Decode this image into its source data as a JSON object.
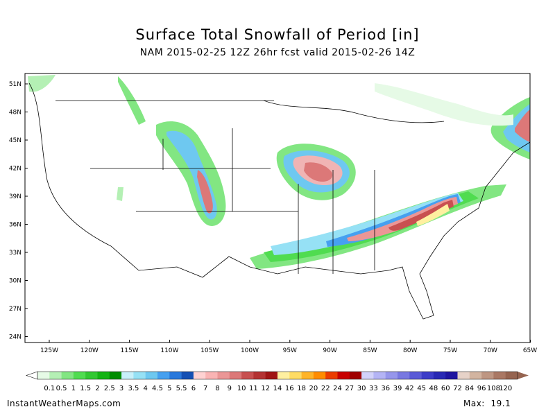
{
  "title": "Surface Total Snowfall of Period [in]",
  "subtitle": "NAM 2015-02-25 12Z 26hr fcst valid 2015-02-26 14Z",
  "credit": "InstantWeatherMaps.com",
  "max_label": "Max:",
  "max_value": "19.1",
  "lat_labels": [
    "51N",
    "48N",
    "45N",
    "42N",
    "39N",
    "36N",
    "33N",
    "30N",
    "27N",
    "24N"
  ],
  "lon_labels": [
    "125W",
    "120W",
    "115W",
    "110W",
    "105W",
    "100W",
    "95W",
    "90W",
    "85W",
    "80W",
    "75W",
    "70W",
    "65W"
  ],
  "legend": {
    "labels": [
      "0.1",
      "0.5",
      "1",
      "1.5",
      "2",
      "2.5",
      "3",
      "3.5",
      "4",
      "4.5",
      "5",
      "5.5",
      "6",
      "7",
      "8",
      "9",
      "10",
      "11",
      "12",
      "14",
      "16",
      "18",
      "20",
      "22",
      "24",
      "27",
      "30",
      "33",
      "36",
      "39",
      "42",
      "45",
      "48",
      "60",
      "72",
      "84",
      "96",
      "108",
      "120"
    ],
    "colors": [
      "#e6fae6",
      "#b4f0b4",
      "#82e682",
      "#50dc50",
      "#32c832",
      "#14b414",
      "#008c00",
      "#c8f0fa",
      "#96e1f5",
      "#6ec8f0",
      "#46a0f0",
      "#2878dc",
      "#1450b4",
      "#ffd2d2",
      "#fab4b4",
      "#eb9696",
      "#dc7878",
      "#c85050",
      "#b43232",
      "#a01414",
      "#fff0a0",
      "#ffdc64",
      "#ffb428",
      "#ff8c00",
      "#eb3c00",
      "#c80000",
      "#a00000",
      "#d2d2fa",
      "#b4b4f5",
      "#9696eb",
      "#7878e1",
      "#5a5ad7",
      "#3c3cc8",
      "#2828b4",
      "#1e14a0",
      "#e6d2c8",
      "#d2b4a0",
      "#be9682",
      "#aa7864",
      "#966450"
    ]
  },
  "snow_areas": [
    {
      "region": "Great Lakes / Upper Midwest",
      "approx_max_in": 12
    },
    {
      "region": "Colorado / Wyoming Rockies",
      "approx_max_in": 14
    },
    {
      "region": "Southern Plains to Virginia",
      "approx_max_in": 19.1
    },
    {
      "region": "Maine / New Brunswick",
      "approx_max_in": 12
    }
  ]
}
